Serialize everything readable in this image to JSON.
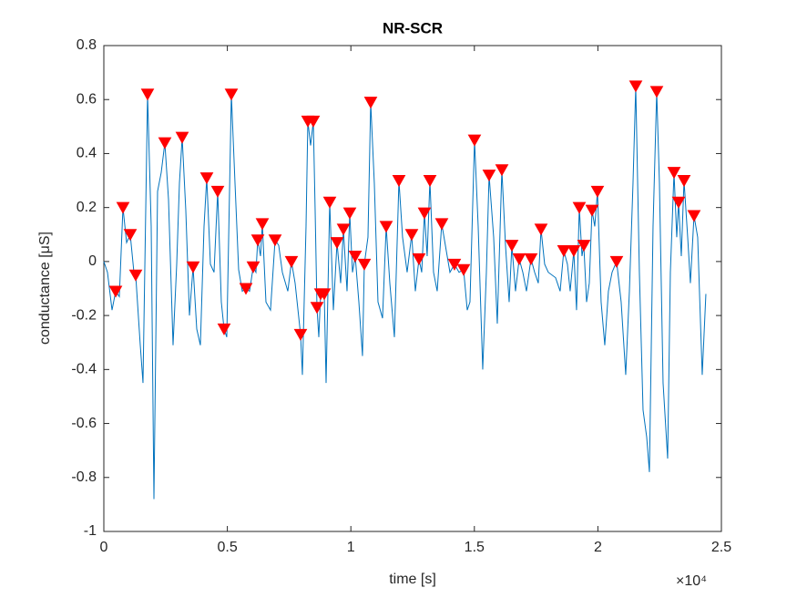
{
  "chart_data": {
    "type": "line",
    "title": "NR-SCR",
    "xlabel": "time [s]",
    "ylabel": "conductance [μS]",
    "x_multiplier": "×10⁴",
    "xlim": [
      0,
      25000
    ],
    "ylim": [
      -1,
      0.8
    ],
    "xticks": [
      0,
      {
        "value": 5000,
        "label": "0.5"
      },
      {
        "value": 10000,
        "label": "1"
      },
      {
        "value": 15000,
        "label": "1.5"
      },
      {
        "value": 20000,
        "label": "2"
      },
      {
        "value": 25000,
        "label": "2.5"
      }
    ],
    "yticks": [
      -1,
      -0.8,
      -0.6,
      -0.4,
      -0.2,
      0,
      0.2,
      0.4,
      0.6,
      0.8
    ],
    "series": [
      {
        "color": "#0072bd",
        "line": true,
        "x": [
          0,
          147,
          332,
          480,
          627,
          774,
          922,
          1069,
          1217,
          1290,
          1475,
          1585,
          1770,
          1917,
          2028,
          2175,
          2323,
          2470,
          2618,
          2802,
          2950,
          3060,
          3171,
          3318,
          3466,
          3613,
          3761,
          3908,
          4056,
          4166,
          4314,
          4461,
          4609,
          4756,
          4867,
          4977,
          5162,
          5310,
          5457,
          5604,
          5752,
          5899,
          6047,
          6157,
          6231,
          6342,
          6416,
          6563,
          6747,
          6932,
          7079,
          7227,
          7448,
          7595,
          7743,
          7964,
          8038,
          8185,
          8259,
          8370,
          8480,
          8554,
          8628,
          8702,
          8776,
          8923,
          8997,
          9144,
          9292,
          9439,
          9587,
          9698,
          9845,
          9955,
          10066,
          10176,
          10324,
          10471,
          10545,
          10692,
          10803,
          10950,
          11098,
          11282,
          11430,
          11577,
          11762,
          11946,
          12093,
          12278,
          12462,
          12610,
          12757,
          12868,
          12978,
          13089,
          13200,
          13347,
          13495,
          13679,
          13826,
          14011,
          14195,
          14379,
          14564,
          14711,
          14822,
          15006,
          15154,
          15338,
          15486,
          15596,
          15781,
          15928,
          16113,
          16260,
          16408,
          16518,
          16665,
          16813,
          16961,
          17108,
          17292,
          17440,
          17587,
          17698,
          17845,
          17993,
          18288,
          18472,
          18620,
          18767,
          18878,
          19025,
          19136,
          19247,
          19357,
          19431,
          19542,
          19652,
          19763,
          19873,
          19984,
          20131,
          20279,
          20426,
          20574,
          20758,
          20942,
          21127,
          21275,
          21422,
          21533,
          21680,
          21828,
          21975,
          22086,
          22233,
          22381,
          22492,
          22639,
          22824,
          22934,
          23082,
          23192,
          23266,
          23377,
          23487,
          23635,
          23745,
          23892,
          24040,
          24224,
          24372
        ],
        "values": [
          0,
          -0.04,
          -0.18,
          -0.11,
          -0.13,
          0.2,
          0.07,
          0.1,
          -0.04,
          -0.05,
          -0.31,
          -0.45,
          0.62,
          0.13,
          -0.88,
          0.26,
          0.33,
          0.44,
          0.23,
          -0.31,
          -0.01,
          0.29,
          0.46,
          0.19,
          -0.2,
          -0.02,
          -0.25,
          -0.31,
          0.13,
          0.31,
          -0.01,
          -0.04,
          0.26,
          -0.15,
          -0.25,
          -0.28,
          0.62,
          0.29,
          -0.03,
          -0.11,
          -0.1,
          -0.11,
          -0.02,
          -0.04,
          0.08,
          0.02,
          0.14,
          -0.15,
          -0.18,
          0.08,
          0.06,
          -0.04,
          -0.11,
          0,
          -0.08,
          -0.27,
          -0.42,
          0.13,
          0.52,
          0.43,
          0.52,
          0.19,
          -0.17,
          -0.28,
          -0.12,
          -0.12,
          -0.45,
          0.22,
          -0.18,
          0.07,
          -0.08,
          0.12,
          -0.11,
          0.18,
          -0.04,
          0.02,
          -0.15,
          -0.35,
          -0.01,
          0.09,
          0.59,
          0.29,
          -0.15,
          -0.21,
          0.13,
          -0.08,
          -0.28,
          0.3,
          0.09,
          -0.04,
          0.1,
          -0.11,
          0.01,
          -0.04,
          0.18,
          0.02,
          0.3,
          -0.04,
          -0.11,
          0.14,
          0.06,
          -0.04,
          -0.01,
          -0.04,
          -0.03,
          -0.18,
          -0.15,
          0.45,
          0.13,
          -0.4,
          -0.04,
          0.32,
          0.09,
          -0.23,
          0.34,
          0.06,
          -0.15,
          0.06,
          -0.11,
          0.01,
          -0.04,
          -0.11,
          0.01,
          -0.04,
          -0.08,
          0.12,
          -0.01,
          -0.04,
          -0.06,
          -0.11,
          0.04,
          -0.01,
          -0.11,
          0.04,
          -0.18,
          0.2,
          0.02,
          0.06,
          -0.15,
          -0.08,
          0.19,
          0.13,
          0.26,
          -0.15,
          -0.31,
          -0.11,
          -0.04,
          0,
          -0.15,
          -0.42,
          -0.11,
          0.29,
          0.65,
          -0.04,
          -0.55,
          -0.65,
          -0.78,
          0.13,
          0.63,
          0.29,
          -0.45,
          -0.73,
          -0.04,
          0.33,
          0.09,
          0.22,
          0.02,
          0.3,
          0.09,
          -0.08,
          0.17,
          0.09,
          -0.42,
          -0.12
        ]
      },
      {
        "color": "#ff0000",
        "line": false,
        "marker": "v",
        "x": [
          480,
          774,
          1069,
          1290,
          1770,
          2470,
          3171,
          3613,
          4166,
          4609,
          4867,
          5162,
          5752,
          6047,
          6231,
          6416,
          6932,
          7595,
          7964,
          8259,
          8480,
          8628,
          8776,
          8923,
          9144,
          9439,
          9698,
          9955,
          10176,
          10545,
          10803,
          11430,
          11946,
          12462,
          12757,
          12978,
          13200,
          13679,
          14195,
          14564,
          15006,
          15596,
          16113,
          16518,
          16813,
          17292,
          17698,
          18620,
          19025,
          19247,
          19431,
          19763,
          19984,
          20758,
          21533,
          22381,
          23082,
          23266,
          23487,
          23892
        ],
        "values": [
          -0.11,
          0.2,
          0.1,
          -0.05,
          0.62,
          0.44,
          0.46,
          -0.02,
          0.31,
          0.26,
          -0.25,
          0.62,
          -0.1,
          -0.02,
          0.08,
          0.14,
          0.08,
          0,
          -0.27,
          0.52,
          0.52,
          -0.17,
          -0.12,
          -0.12,
          0.22,
          0.07,
          0.12,
          0.18,
          0.02,
          -0.01,
          0.59,
          0.13,
          0.3,
          0.1,
          0.01,
          0.18,
          0.3,
          0.14,
          -0.01,
          -0.03,
          0.45,
          0.32,
          0.34,
          0.06,
          0.01,
          0.01,
          0.12,
          0.04,
          0.04,
          0.2,
          0.06,
          0.19,
          0.26,
          0,
          0.65,
          0.63,
          0.33,
          0.22,
          0.3,
          0.17
        ]
      }
    ]
  }
}
